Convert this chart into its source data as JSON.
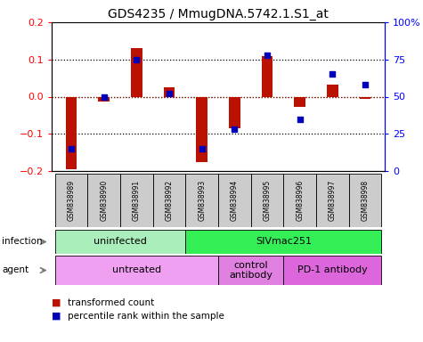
{
  "title": "GDS4235 / MmugDNA.5742.1.S1_at",
  "samples": [
    "GSM838989",
    "GSM838990",
    "GSM838991",
    "GSM838992",
    "GSM838993",
    "GSM838994",
    "GSM838995",
    "GSM838996",
    "GSM838997",
    "GSM838998"
  ],
  "transformed_counts": [
    -0.195,
    -0.012,
    0.13,
    0.025,
    -0.175,
    -0.085,
    0.108,
    -0.028,
    0.033,
    -0.005
  ],
  "percentile_ranks": [
    15,
    50,
    75,
    52,
    15,
    28,
    78,
    35,
    65,
    58
  ],
  "ylim": [
    -0.2,
    0.2
  ],
  "right_ylim": [
    0,
    100
  ],
  "right_yticks": [
    0,
    25,
    50,
    75,
    100
  ],
  "right_yticklabels": [
    "0",
    "25",
    "50",
    "75",
    "100%"
  ],
  "left_yticks": [
    -0.2,
    -0.1,
    0.0,
    0.1,
    0.2
  ],
  "bar_color": "#bb1100",
  "dot_color": "#0000bb",
  "hline0_color": "#cc3333",
  "hline0_style": "dotted",
  "hline_style": "dotted",
  "infection_groups": [
    {
      "label": "uninfected",
      "start": 0,
      "end": 4,
      "color": "#aaeebb"
    },
    {
      "label": "SIVmac251",
      "start": 4,
      "end": 10,
      "color": "#33ee55"
    }
  ],
  "agent_groups": [
    {
      "label": "untreated",
      "start": 0,
      "end": 5,
      "color": "#f0a0f0"
    },
    {
      "label": "control\nantibody",
      "start": 5,
      "end": 7,
      "color": "#e080e0"
    },
    {
      "label": "PD-1 antibody",
      "start": 7,
      "end": 10,
      "color": "#dd66dd"
    }
  ],
  "legend_items": [
    {
      "label": "transformed count",
      "color": "#bb1100"
    },
    {
      "label": "percentile rank within the sample",
      "color": "#0000bb"
    }
  ],
  "bar_width": 0.35
}
